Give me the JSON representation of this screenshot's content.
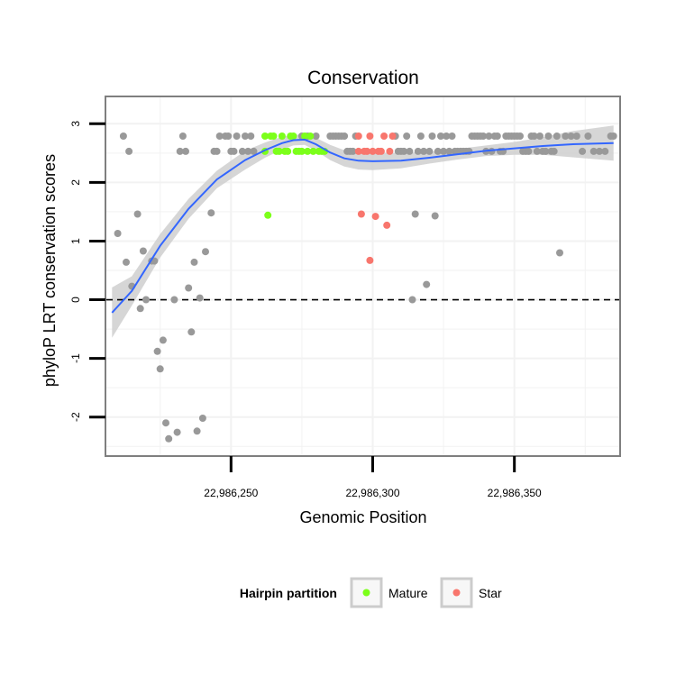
{
  "chart_data": {
    "type": "scatter",
    "title": "Conservation",
    "xlabel": "Genomic Position",
    "ylabel": "phyloP LRT conservation scores",
    "xlim": [
      22986206,
      22986387
    ],
    "ylim": [
      -2.65,
      3.45
    ],
    "x_ticks": [
      22986250,
      22986300,
      22986350
    ],
    "x_tick_labels": [
      "22,986,250",
      "22,986,300",
      "22,986,350"
    ],
    "y_ticks": [
      -2,
      -1,
      0,
      1,
      2,
      3
    ],
    "y_tick_labels": [
      "-2",
      "-1",
      "0",
      "1",
      "2",
      "3"
    ],
    "reference_line": {
      "y": 0,
      "style": "dashed"
    },
    "legend": {
      "title": "Hairpin partition",
      "position": "bottom",
      "entries": [
        {
          "label": "Mature",
          "color": "#7cff1a"
        },
        {
          "label": "Star",
          "color": "#f8766d"
        }
      ]
    },
    "colors": {
      "other": "#999999",
      "mature": "#7cff1a",
      "star": "#f8766d",
      "smooth": "#3366ff",
      "band": "#cccccc",
      "panel_border": "#7f7f7f",
      "grid": "#f2f2f2"
    },
    "series": [
      {
        "name": "Other",
        "points": [
          [
            22986210,
            1.13
          ],
          [
            22986212,
            2.79
          ],
          [
            22986213,
            0.64
          ],
          [
            22986214,
            2.53
          ],
          [
            22986215,
            0.23
          ],
          [
            22986217,
            1.46
          ],
          [
            22986218,
            -0.15
          ],
          [
            22986219,
            0.83
          ],
          [
            22986220,
            0.0
          ],
          [
            22986222,
            0.66
          ],
          [
            22986223,
            0.66
          ],
          [
            22986224,
            -0.88
          ],
          [
            22986225,
            -1.18
          ],
          [
            22986226,
            -0.69
          ],
          [
            22986227,
            -2.1
          ],
          [
            22986228,
            -2.37
          ],
          [
            22986230,
            0.0
          ],
          [
            22986231,
            -2.26
          ],
          [
            22986232,
            2.53
          ],
          [
            22986233,
            2.79
          ],
          [
            22986234,
            2.53
          ],
          [
            22986235,
            0.2
          ],
          [
            22986236,
            -0.55
          ],
          [
            22986237,
            0.64
          ],
          [
            22986238,
            -2.24
          ],
          [
            22986239,
            0.03
          ],
          [
            22986240,
            -2.02
          ],
          [
            22986241,
            0.82
          ],
          [
            22986243,
            1.48
          ],
          [
            22986244,
            2.53
          ],
          [
            22986245,
            2.53
          ],
          [
            22986246,
            2.79
          ],
          [
            22986248,
            2.79
          ],
          [
            22986249,
            2.79
          ],
          [
            22986250,
            2.53
          ],
          [
            22986251,
            2.53
          ],
          [
            22986252,
            2.79
          ],
          [
            22986254,
            2.53
          ],
          [
            22986255,
            2.79
          ],
          [
            22986256,
            2.53
          ],
          [
            22986257,
            2.79
          ],
          [
            22986258,
            2.53
          ],
          [
            22986275,
            2.79
          ],
          [
            22986277,
            2.79
          ],
          [
            22986280,
            2.79
          ],
          [
            22986285,
            2.79
          ],
          [
            22986286,
            2.79
          ],
          [
            22986287,
            2.79
          ],
          [
            22986288,
            2.79
          ],
          [
            22986289,
            2.79
          ],
          [
            22986290,
            2.79
          ],
          [
            22986291,
            2.53
          ],
          [
            22986292,
            2.53
          ],
          [
            22986293,
            2.53
          ],
          [
            22986294,
            2.79
          ],
          [
            22986308,
            2.79
          ],
          [
            22986309,
            2.53
          ],
          [
            22986310,
            2.53
          ],
          [
            22986311,
            2.53
          ],
          [
            22986312,
            2.79
          ],
          [
            22986313,
            2.53
          ],
          [
            22986314,
            0.0
          ],
          [
            22986315,
            1.46
          ],
          [
            22986316,
            2.53
          ],
          [
            22986317,
            2.79
          ],
          [
            22986318,
            2.53
          ],
          [
            22986319,
            0.26
          ],
          [
            22986320,
            2.53
          ],
          [
            22986321,
            2.79
          ],
          [
            22986322,
            1.43
          ],
          [
            22986323,
            2.53
          ],
          [
            22986324,
            2.79
          ],
          [
            22986325,
            2.53
          ],
          [
            22986326,
            2.79
          ],
          [
            22986327,
            2.53
          ],
          [
            22986328,
            2.79
          ],
          [
            22986329,
            2.53
          ],
          [
            22986330,
            2.53
          ],
          [
            22986331,
            2.53
          ],
          [
            22986332,
            2.53
          ],
          [
            22986333,
            2.53
          ],
          [
            22986334,
            2.53
          ],
          [
            22986335,
            2.79
          ],
          [
            22986336,
            2.79
          ],
          [
            22986337,
            2.79
          ],
          [
            22986338,
            2.79
          ],
          [
            22986339,
            2.79
          ],
          [
            22986340,
            2.53
          ],
          [
            22986341,
            2.79
          ],
          [
            22986342,
            2.53
          ],
          [
            22986343,
            2.79
          ],
          [
            22986344,
            2.79
          ],
          [
            22986345,
            2.53
          ],
          [
            22986346,
            2.53
          ],
          [
            22986347,
            2.79
          ],
          [
            22986348,
            2.79
          ],
          [
            22986349,
            2.79
          ],
          [
            22986350,
            2.79
          ],
          [
            22986351,
            2.79
          ],
          [
            22986352,
            2.79
          ],
          [
            22986353,
            2.53
          ],
          [
            22986354,
            2.53
          ],
          [
            22986355,
            2.53
          ],
          [
            22986356,
            2.79
          ],
          [
            22986357,
            2.79
          ],
          [
            22986358,
            2.53
          ],
          [
            22986359,
            2.79
          ],
          [
            22986360,
            2.53
          ],
          [
            22986361,
            2.53
          ],
          [
            22986362,
            2.79
          ],
          [
            22986363,
            2.53
          ],
          [
            22986364,
            2.53
          ],
          [
            22986365,
            2.79
          ],
          [
            22986366,
            0.8
          ],
          [
            22986368,
            2.79
          ],
          [
            22986370,
            2.79
          ],
          [
            22986372,
            2.79
          ],
          [
            22986374,
            2.53
          ],
          [
            22986376,
            2.79
          ],
          [
            22986378,
            2.53
          ],
          [
            22986380,
            2.53
          ],
          [
            22986382,
            2.53
          ],
          [
            22986384,
            2.79
          ],
          [
            22986385,
            2.79
          ]
        ]
      },
      {
        "name": "Mature",
        "points": [
          [
            22986262,
            2.53
          ],
          [
            22986262,
            2.79
          ],
          [
            22986263,
            1.44
          ],
          [
            22986264,
            2.79
          ],
          [
            22986265,
            2.79
          ],
          [
            22986266,
            2.53
          ],
          [
            22986267,
            2.53
          ],
          [
            22986268,
            2.79
          ],
          [
            22986269,
            2.53
          ],
          [
            22986270,
            2.53
          ],
          [
            22986271,
            2.79
          ],
          [
            22986272,
            2.79
          ],
          [
            22986273,
            2.53
          ],
          [
            22986274,
            2.53
          ],
          [
            22986275,
            2.53
          ],
          [
            22986276,
            2.79
          ],
          [
            22986277,
            2.53
          ],
          [
            22986278,
            2.79
          ],
          [
            22986279,
            2.53
          ],
          [
            22986281,
            2.53
          ],
          [
            22986282,
            2.53
          ],
          [
            22986283,
            2.53
          ]
        ]
      },
      {
        "name": "Star",
        "points": [
          [
            22986295,
            2.79
          ],
          [
            22986295,
            2.53
          ],
          [
            22986296,
            1.46
          ],
          [
            22986297,
            2.53
          ],
          [
            22986298,
            2.53
          ],
          [
            22986299,
            2.79
          ],
          [
            22986299,
            0.67
          ],
          [
            22986300,
            2.53
          ],
          [
            22986301,
            1.42
          ],
          [
            22986302,
            2.53
          ],
          [
            22986303,
            2.53
          ],
          [
            22986304,
            2.79
          ],
          [
            22986305,
            1.27
          ],
          [
            22986306,
            2.53
          ],
          [
            22986307,
            2.79
          ]
        ]
      }
    ],
    "smooth": {
      "x": [
        22986208,
        22986215,
        22986225,
        22986235,
        22986245,
        22986255,
        22986262,
        22986268,
        22986272,
        22986276,
        22986280,
        22986285,
        22986290,
        22986295,
        22986300,
        22986310,
        22986320,
        22986330,
        22986340,
        22986350,
        22986360,
        22986370,
        22986385
      ],
      "y": [
        -0.22,
        0.15,
        0.92,
        1.55,
        2.05,
        2.38,
        2.55,
        2.67,
        2.72,
        2.73,
        2.65,
        2.51,
        2.41,
        2.37,
        2.36,
        2.37,
        2.42,
        2.48,
        2.54,
        2.58,
        2.62,
        2.65,
        2.67
      ],
      "lower": [
        -0.65,
        -0.1,
        0.72,
        1.38,
        1.9,
        2.22,
        2.42,
        2.56,
        2.63,
        2.64,
        2.54,
        2.38,
        2.27,
        2.22,
        2.21,
        2.24,
        2.32,
        2.39,
        2.45,
        2.47,
        2.47,
        2.43,
        2.37
      ],
      "upper": [
        0.21,
        0.4,
        1.12,
        1.72,
        2.2,
        2.54,
        2.68,
        2.78,
        2.81,
        2.82,
        2.76,
        2.64,
        2.55,
        2.52,
        2.51,
        2.5,
        2.52,
        2.57,
        2.63,
        2.69,
        2.77,
        2.87,
        2.97
      ]
    }
  }
}
